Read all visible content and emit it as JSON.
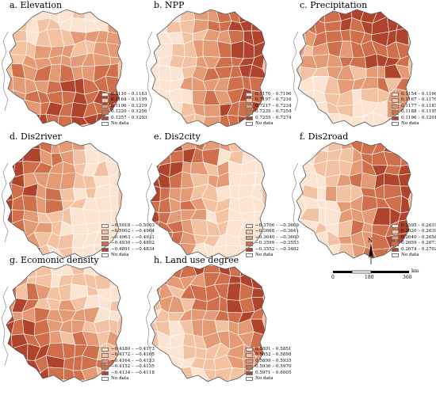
{
  "panels": [
    {
      "id": "a",
      "title": "a. Elevation",
      "scheme": "dark-south",
      "legend": [
        "0.1110 – 0.1163",
        "0.1164 – 0.1195",
        "0.1196 – 0.1219",
        "0.1220 – 0.1256",
        "0.1257 – 0.1293",
        "No data"
      ]
    },
    {
      "id": "b",
      "title": "b. NPP",
      "scheme": "dark-east",
      "legend": [
        "0.7170 – 0.7196",
        "0.7197 – 0.7216",
        "0.7217 – 0.7234",
        "0.7235 – 0.7254",
        "0.7255 – 0.7274",
        "No data"
      ]
    },
    {
      "id": "c",
      "title": "c. Precipitation",
      "scheme": "dark-north",
      "legend": [
        "0.1154 – 0.1166",
        "0.1167 – 0.1176",
        "0.1177 – 0.1187",
        "0.1188 – 0.1195",
        "0.1196 – 0.1201",
        "No data"
      ]
    },
    {
      "id": "d",
      "title": "d. Dis2river",
      "scheme": "dark-west",
      "legend": [
        "−0.5018 – −0.5003",
        "−0.5002 – −0.4964",
        "−0.4963 – −0.4931",
        "−0.4930 – −0.4892",
        "−0.4891 – −0.4834",
        "No data"
      ]
    },
    {
      "id": "e",
      "title": "e. Dis2city",
      "scheme": "dark-west",
      "legend": [
        "−0.3706 – −0.3669",
        "−0.3668 – −0.3641",
        "−0.3640 – −0.3600",
        "−0.3599 – −0.3553",
        "−0.3552 – −0.3482",
        "No data"
      ]
    },
    {
      "id": "f",
      "title": "f. Dis2road",
      "scheme": "dark-east",
      "legend": [
        "0.2595 – 0.2619",
        "0.2620 – 0.2639",
        "0.2640 – 0.2658",
        "0.2659 – 0.2673",
        "0.2674 – 0.2702",
        "No data"
      ]
    },
    {
      "id": "g",
      "title": "g. Ecomonic density",
      "scheme": "dark-southwest",
      "legend": [
        "−0.4180 – −0.4173",
        "−0.4172 – −0.4165",
        "−0.4164 – −0.4153",
        "−0.4152 – −0.4135",
        "−0.4134 – −0.4118",
        "No data"
      ]
    },
    {
      "id": "h",
      "title": "h. Land use degree",
      "scheme": "dark-northeast",
      "legend": [
        "0.5801 – 0.5851",
        "0.5852 – 0.5898",
        "0.5899 – 0.5935",
        "0.5936 – 0.5970",
        "0.5971 – 0.6005",
        "No data"
      ]
    }
  ],
  "palette": [
    "#fbe5d2",
    "#f3c2a2",
    "#e39a75",
    "#cf6f4c",
    "#b0432b"
  ],
  "nodata_color": "#ffffff",
  "scale": {
    "north": "N",
    "ticks": [
      "0",
      "180",
      "360"
    ],
    "unit": "km"
  }
}
